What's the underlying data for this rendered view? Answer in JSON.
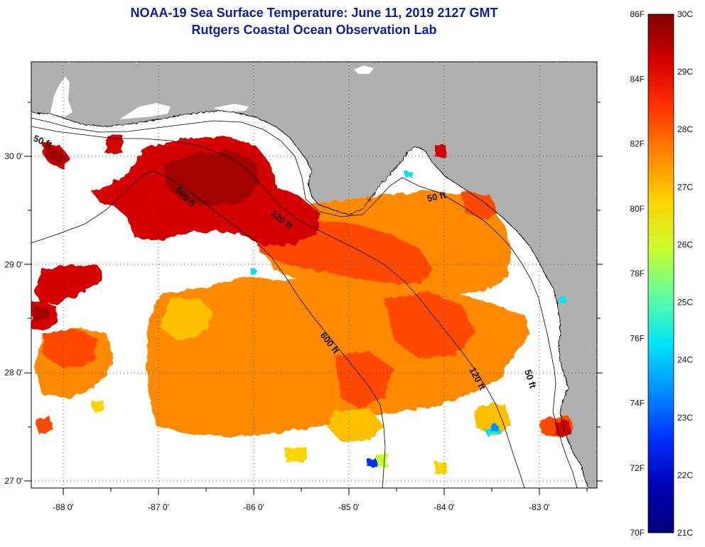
{
  "title": {
    "line1": "NOAA-19 Sea Surface Temperature:  June 11, 2019 2127 GMT",
    "line2": "Rutgers Coastal Ocean Observation Lab"
  },
  "axes": {
    "lon_ticks": [
      {
        "value": -88,
        "label": "-88 0'"
      },
      {
        "value": -87,
        "label": "-87 0'"
      },
      {
        "value": -86,
        "label": "-86 0'"
      },
      {
        "value": -85,
        "label": "-85 0'"
      },
      {
        "value": -84,
        "label": "-84 0'"
      },
      {
        "value": -83,
        "label": "-83 0'"
      }
    ],
    "lat_ticks": [
      {
        "value": 30,
        "label": "30 0'"
      },
      {
        "value": 29,
        "label": "29 0'"
      },
      {
        "value": 28,
        "label": "28 0'"
      },
      {
        "value": 27,
        "label": "27 0'"
      }
    ],
    "grid": "dotted"
  },
  "contour_labels": [
    {
      "text": "50 ft"
    },
    {
      "text": "600 ft"
    },
    {
      "text": "120 ft"
    },
    {
      "text": "50 ft"
    },
    {
      "text": "600 ft"
    },
    {
      "text": "120 ft"
    },
    {
      "text": "50 ft"
    }
  ],
  "colorbar": {
    "fahrenheit": [
      "86F",
      "84F",
      "82F",
      "80F",
      "78F",
      "76F",
      "74F",
      "72F",
      "70F"
    ],
    "celsius": [
      "30C",
      "29C",
      "28C",
      "27C",
      "26C",
      "25C",
      "24C",
      "23C",
      "22C",
      "21C"
    ],
    "colors": [
      "#7f0000",
      "#d40000",
      "#ff3500",
      "#ff8a00",
      "#ffd500",
      "#c8ff2e",
      "#5dffa0",
      "#00e4f8",
      "#008fff",
      "#0030ff",
      "#0000b4",
      "#00007a"
    ]
  },
  "colors": {
    "land": "#b0b0b0",
    "water_nodata": "#ffffff",
    "title": "#0b1f9e"
  }
}
